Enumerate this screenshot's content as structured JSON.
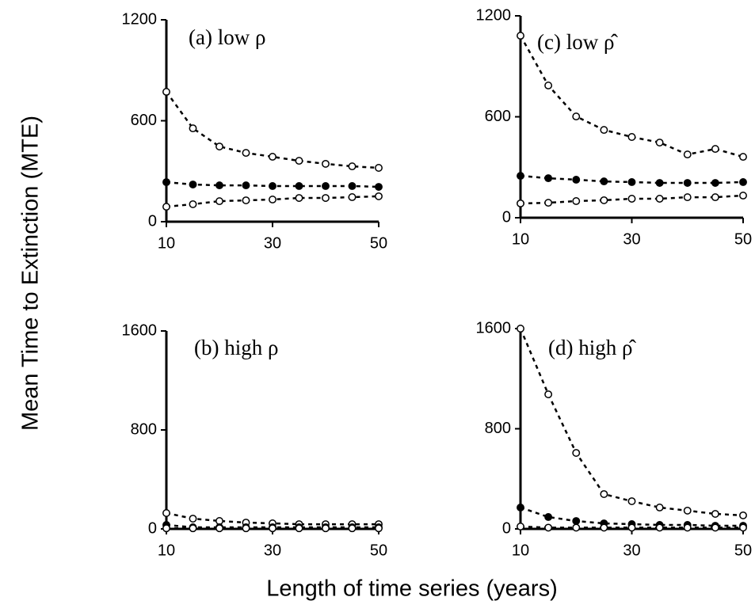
{
  "ylabel": "Mean Time to Extinction (MTE)",
  "xlabel": "Length of time series (years)",
  "chart_data": [
    {
      "type": "scatter",
      "title": "(a) low ρ",
      "xlim": [
        10,
        50
      ],
      "xticks": [
        10,
        30,
        50
      ],
      "ylim": [
        0,
        1200
      ],
      "yticks": [
        0,
        600,
        1200
      ],
      "x": [
        10,
        15,
        20,
        25,
        30,
        35,
        40,
        45,
        50
      ],
      "series": [
        {
          "color": "#000000",
          "marker": "open",
          "values": [
            772,
            555,
            447,
            409,
            386,
            362,
            344,
            329,
            320
          ]
        },
        {
          "color": "#000000",
          "marker": "filled",
          "values": [
            235,
            221,
            216,
            216,
            212,
            212,
            212,
            212,
            207
          ]
        },
        {
          "color": "#000000",
          "marker": "open",
          "values": [
            89,
            104,
            122,
            127,
            132,
            141,
            141,
            146,
            151
          ]
        }
      ]
    },
    {
      "type": "scatter",
      "title": "(c) low ρ̂",
      "xlim": [
        10,
        50
      ],
      "xticks": [
        10,
        30,
        50
      ],
      "ylim": [
        0,
        1200
      ],
      "yticks": [
        0,
        600,
        1200
      ],
      "x": [
        10,
        15,
        20,
        25,
        30,
        35,
        40,
        45,
        50
      ],
      "series": [
        {
          "color": "#000000",
          "marker": "open",
          "values": [
            1082,
            786,
            602,
            522,
            480,
            447,
            376,
            409,
            362
          ]
        },
        {
          "color": "#000000",
          "marker": "filled",
          "values": [
            249,
            235,
            226,
            216,
            212,
            207,
            207,
            207,
            212
          ]
        },
        {
          "color": "#000000",
          "marker": "open",
          "values": [
            85,
            89,
            99,
            104,
            113,
            113,
            122,
            122,
            132
          ]
        }
      ]
    },
    {
      "type": "scatter",
      "title": "(b) high ρ",
      "xlim": [
        10,
        50
      ],
      "xticks": [
        10,
        30,
        50
      ],
      "ylim": [
        0,
        1600
      ],
      "yticks": [
        0,
        800,
        1600
      ],
      "x": [
        10,
        15,
        20,
        25,
        30,
        35,
        40,
        45,
        50
      ],
      "series": [
        {
          "color": "#000000",
          "marker": "open",
          "values": [
            128,
            83,
            64,
            51,
            45,
            38,
            38,
            38,
            38
          ]
        },
        {
          "color": "#000000",
          "marker": "filled",
          "values": [
            32,
            13,
            13,
            13,
            13,
            13,
            13,
            13,
            13
          ]
        },
        {
          "color": "#000000",
          "marker": "open",
          "values": [
            5,
            5,
            5,
            5,
            5,
            5,
            5,
            5,
            5
          ]
        }
      ]
    },
    {
      "type": "scatter",
      "title": "(d) high ρ̂",
      "xlim": [
        10,
        50
      ],
      "xticks": [
        10,
        30,
        50
      ],
      "ylim": [
        0,
        1600
      ],
      "yticks": [
        0,
        800,
        1600
      ],
      "x": [
        10,
        15,
        20,
        25,
        30,
        35,
        40,
        45,
        50
      ],
      "series": [
        {
          "color": "#000000",
          "marker": "open",
          "values": [
            1600,
            1075,
            607,
            278,
            221,
            171,
            146,
            120,
            108
          ]
        },
        {
          "color": "#000000",
          "marker": "filled",
          "values": [
            171,
            95,
            63,
            44,
            38,
            32,
            32,
            25,
            25
          ]
        },
        {
          "color": "#000000",
          "marker": "open",
          "values": [
            19,
            10,
            10,
            10,
            10,
            10,
            10,
            10,
            10
          ]
        }
      ]
    }
  ]
}
